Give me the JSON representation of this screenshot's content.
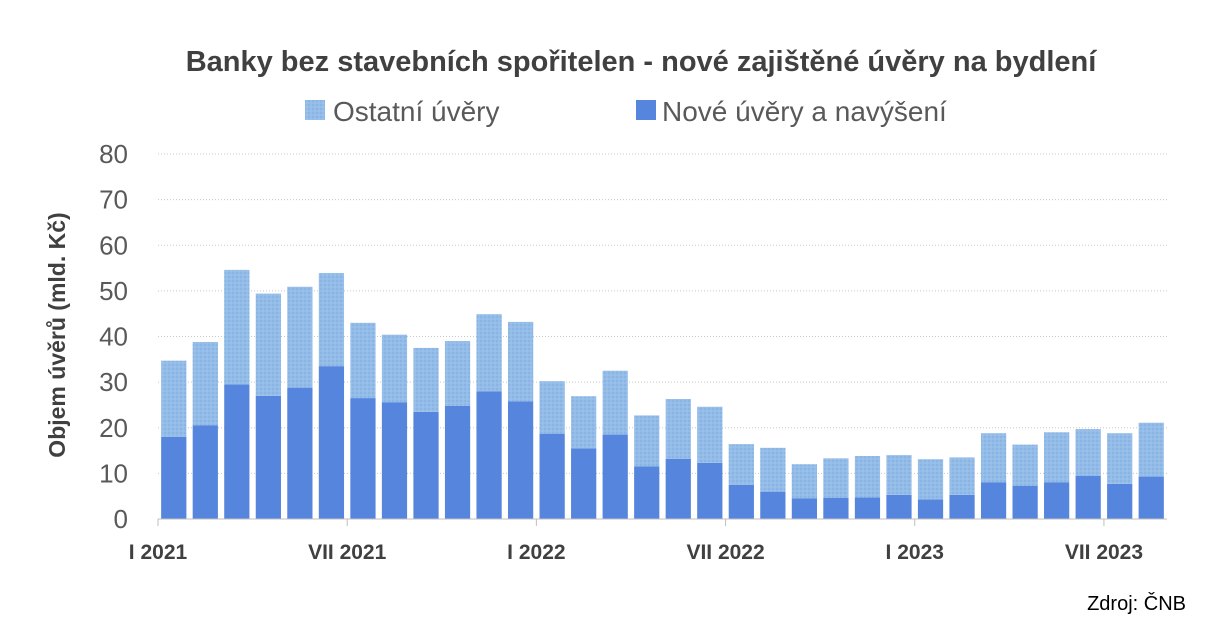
{
  "chart_data": {
    "type": "bar",
    "stacked": true,
    "title": "Banky bez stavebních spořitelen - nové zajištěné úvěry na bydlení",
    "ylabel": "Objem úvěrů (mld. Kč)",
    "xlabel": "",
    "ylim": [
      0,
      80
    ],
    "yticks": [
      0,
      10,
      20,
      30,
      40,
      50,
      60,
      70,
      80
    ],
    "grid": true,
    "legend_position": "top",
    "source": "Zdroj: ČNB",
    "categories": [
      "I 2021",
      "II 2021",
      "III 2021",
      "IV 2021",
      "V 2021",
      "VI 2021",
      "VII 2021",
      "VIII 2021",
      "IX 2021",
      "X 2021",
      "XI 2021",
      "XII 2021",
      "I 2022",
      "II 2022",
      "III 2022",
      "IV 2022",
      "V 2022",
      "VI 2022",
      "VII 2022",
      "VIII 2022",
      "IX 2022",
      "X 2022",
      "XI 2022",
      "XII 2022",
      "I 2023",
      "II 2023",
      "III 2023",
      "IV 2023",
      "V 2023",
      "VI 2023",
      "VII 2023",
      "VIII 2023"
    ],
    "x_tick_labels": [
      {
        "index": 0,
        "label": "I 2021"
      },
      {
        "index": 6,
        "label": "VII 2021"
      },
      {
        "index": 12,
        "label": "I 2022"
      },
      {
        "index": 18,
        "label": "VII 2022"
      },
      {
        "index": 24,
        "label": "I 2023"
      },
      {
        "index": 30,
        "label": "VII 2023"
      }
    ],
    "series": [
      {
        "name": "Nové úvěry a navýšení",
        "color": "#5585DC",
        "values": [
          18.0,
          20.5,
          29.5,
          27.0,
          28.8,
          33.5,
          26.5,
          25.6,
          23.5,
          24.8,
          28.0,
          25.8,
          18.7,
          15.5,
          18.5,
          11.5,
          13.2,
          12.3,
          7.5,
          6.0,
          4.5,
          4.6,
          4.7,
          5.3,
          4.3,
          5.3,
          8.0,
          7.3,
          8.0,
          9.5,
          7.7,
          9.3
        ]
      },
      {
        "name": "Ostatní úvěry",
        "color": "#93BCE8",
        "values": [
          16.7,
          18.3,
          25.1,
          22.4,
          22.1,
          20.4,
          16.5,
          14.8,
          14.0,
          14.2,
          16.9,
          17.4,
          11.5,
          11.4,
          14.0,
          11.2,
          13.1,
          12.3,
          8.9,
          9.6,
          7.5,
          8.7,
          9.1,
          8.7,
          8.8,
          8.2,
          10.8,
          9.0,
          11.0,
          10.2,
          11.1,
          11.8
        ]
      }
    ]
  }
}
